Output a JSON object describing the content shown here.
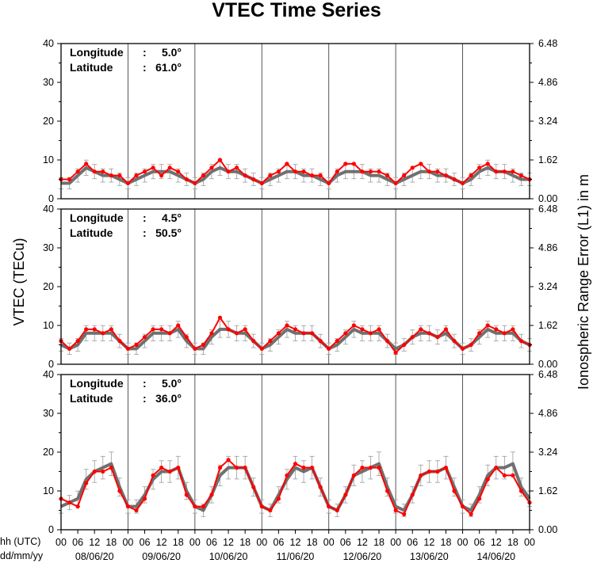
{
  "chart_data": {
    "type": "line",
    "title": "VTEC Time Series",
    "ylabel": "VTEC (TECu)",
    "ylabel_right": "Ionospheric Range Error (L1) in m",
    "x_label_hours": "hh (UTC)",
    "x_label_dates": "dd/mm/yy",
    "ylim": [
      0,
      40
    ],
    "ylim_right": [
      0,
      6.48
    ],
    "y_ticks": [
      "0",
      "10",
      "20",
      "30",
      "40"
    ],
    "y_ticks_right": [
      "0.00",
      "1.62",
      "3.24",
      "4.86",
      "6.48"
    ],
    "hour_ticks": [
      "00",
      "06",
      "12",
      "18",
      "00",
      "06",
      "12",
      "18",
      "00",
      "06",
      "12",
      "18",
      "00",
      "06",
      "12",
      "18",
      "00",
      "06",
      "12",
      "18",
      "00",
      "06",
      "12",
      "18",
      "00",
      "06",
      "12",
      "18",
      "00"
    ],
    "days": [
      "08/06/20",
      "09/06/20",
      "10/06/20",
      "11/06/20",
      "12/06/20",
      "13/06/20",
      "14/06/20"
    ],
    "x_hours": [
      0,
      3,
      6,
      9,
      12,
      15,
      18,
      21,
      24,
      27,
      30,
      33,
      36,
      39,
      42,
      45,
      48,
      51,
      54,
      57,
      60,
      63,
      66,
      69,
      72,
      75,
      78,
      81,
      84,
      87,
      90,
      93,
      96,
      99,
      102,
      105,
      108,
      111,
      114,
      117,
      120,
      123,
      126,
      129,
      132,
      135,
      138,
      141,
      144,
      147,
      150,
      153,
      156,
      159,
      162,
      165,
      168
    ],
    "grid": "vertical lines at day boundaries",
    "series_colors": {
      "measured": "#ff0000",
      "reference": "#707070",
      "error_bars": "#9a9a9a"
    },
    "panels": [
      {
        "longitude_label": "Longitude",
        "longitude_value": "5.0°",
        "latitude_label": "Latitude",
        "latitude_value": "61.0°",
        "series": [
          {
            "role": "measured",
            "values": [
              5,
              5,
              7,
              9,
              7,
              7,
              6,
              6,
              4,
              6,
              7,
              8,
              6,
              8,
              7,
              5,
              4,
              6,
              8,
              10,
              7,
              8,
              6,
              5,
              4,
              6,
              7,
              9,
              7,
              7,
              6,
              6,
              4,
              7,
              9,
              9,
              7,
              7,
              7,
              6,
              4,
              6,
              8,
              9,
              7,
              7,
              6,
              5,
              4,
              6,
              8,
              9,
              7,
              7,
              7,
              6,
              5
            ]
          },
          {
            "role": "reference",
            "values": [
              4,
              4,
              6,
              8,
              7,
              6,
              6,
              5,
              4,
              5,
              6,
              7,
              7,
              7,
              6,
              5,
              4,
              5,
              7,
              8,
              7,
              7,
              6,
              5,
              4,
              5,
              6,
              7,
              7,
              6,
              6,
              5,
              4,
              6,
              7,
              7,
              7,
              6,
              6,
              5,
              4,
              5,
              6,
              7,
              7,
              6,
              6,
              5,
              4,
              5,
              7,
              8,
              7,
              7,
              6,
              5,
              5
            ]
          }
        ]
      },
      {
        "longitude_label": "Longitude",
        "longitude_value": "4.5°",
        "latitude_label": "Latitude",
        "latitude_value": "50.5°",
        "series": [
          {
            "role": "measured",
            "values": [
              6,
              4,
              6,
              9,
              9,
              8,
              9,
              6,
              4,
              5,
              7,
              9,
              9,
              8,
              10,
              7,
              4,
              5,
              8,
              12,
              9,
              8,
              9,
              6,
              4,
              6,
              8,
              10,
              9,
              8,
              8,
              6,
              4,
              6,
              8,
              10,
              9,
              8,
              9,
              6,
              3,
              5,
              7,
              9,
              8,
              7,
              9,
              6,
              4,
              5,
              8,
              10,
              9,
              8,
              9,
              6,
              5
            ]
          },
          {
            "role": "reference",
            "values": [
              5,
              4,
              5,
              8,
              8,
              8,
              8,
              6,
              4,
              4,
              6,
              8,
              8,
              8,
              9,
              6,
              4,
              4,
              7,
              9,
              9,
              8,
              8,
              6,
              4,
              5,
              7,
              9,
              8,
              8,
              8,
              6,
              4,
              5,
              7,
              9,
              8,
              8,
              8,
              6,
              4,
              5,
              7,
              8,
              8,
              7,
              8,
              6,
              4,
              5,
              7,
              9,
              8,
              8,
              8,
              6,
              5
            ]
          }
        ]
      },
      {
        "longitude_label": "Longitude",
        "longitude_value": "5.0°",
        "latitude_label": "Latitude",
        "latitude_value": "36.0°",
        "series": [
          {
            "role": "measured",
            "values": [
              8,
              7,
              6,
              12,
              15,
              15,
              16,
              10,
              6,
              5,
              8,
              14,
              16,
              15,
              16,
              9,
              6,
              6,
              9,
              16,
              18,
              16,
              16,
              11,
              6,
              5,
              8,
              14,
              17,
              16,
              16,
              11,
              6,
              5,
              9,
              14,
              16,
              16,
              16,
              10,
              5,
              4,
              9,
              14,
              15,
              15,
              16,
              10,
              6,
              4,
              8,
              13,
              16,
              14,
              14,
              10,
              7
            ]
          },
          {
            "role": "reference",
            "values": [
              6,
              7,
              8,
              13,
              15,
              16,
              17,
              11,
              6,
              6,
              9,
              13,
              15,
              15,
              16,
              10,
              6,
              5,
              9,
              14,
              16,
              16,
              16,
              11,
              6,
              5,
              9,
              13,
              16,
              15,
              16,
              11,
              6,
              5,
              9,
              14,
              15,
              16,
              17,
              11,
              6,
              5,
              9,
              14,
              15,
              15,
              16,
              11,
              6,
              5,
              9,
              14,
              16,
              16,
              17,
              11,
              8
            ]
          }
        ]
      }
    ]
  }
}
